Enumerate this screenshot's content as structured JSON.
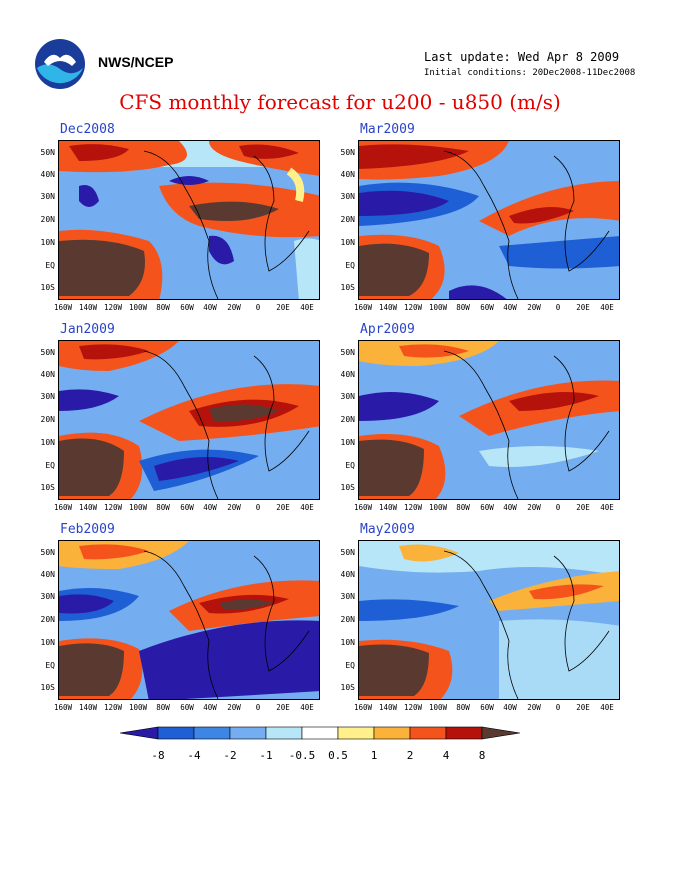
{
  "header": {
    "org": "NWS/NCEP",
    "last_update": "Last update: Wed Apr 8 2009",
    "initial_conditions": "Initial conditions: 20Dec2008-11Dec2008",
    "title": "CFS monthly forecast for u200 - u850 (m/s)"
  },
  "panels": [
    {
      "label": "Dec2008"
    },
    {
      "label": "Mar2009"
    },
    {
      "label": "Jan2009"
    },
    {
      "label": "Apr2009"
    },
    {
      "label": "Feb2009"
    },
    {
      "label": "May2009"
    }
  ],
  "lat_labels": [
    "50N",
    "40N",
    "30N",
    "20N",
    "10N",
    "EQ",
    "10S"
  ],
  "lon_labels": [
    "160W",
    "140W",
    "120W",
    "100W",
    "80W",
    "60W",
    "40W",
    "20W",
    "0",
    "20E",
    "40E"
  ],
  "colorbar": {
    "labels": [
      "-8",
      "-4",
      "-2",
      "-1",
      "-0.5",
      "0.5",
      "1",
      "2",
      "4",
      "8"
    ],
    "colors": [
      "#2a1aa8",
      "#1e5fd6",
      "#3d86e6",
      "#74aef0",
      "#b6e6f8",
      "#ffffff",
      "#fff08c",
      "#fbb23a",
      "#f4541c",
      "#b5120c",
      "#5a3a30"
    ]
  }
}
